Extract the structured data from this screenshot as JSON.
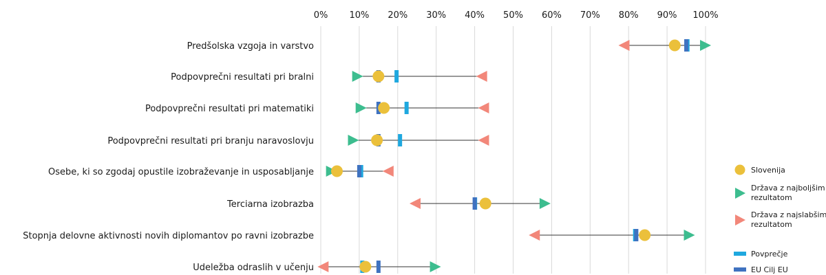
{
  "chart_data": {
    "type": "scatter",
    "xlim": [
      0,
      100
    ],
    "x_ticks": [
      "0%",
      "10%",
      "20%",
      "30%",
      "40%",
      "50%",
      "60%",
      "70%",
      "80%",
      "90%",
      "100%"
    ],
    "grid": "vertical",
    "legend_position": "right",
    "categories": [
      "Predšolska vzgoja in varstvo",
      "Podpovprečni resultati pri bralni",
      "Podpovprečni resultati pri matematiki",
      "Podpovprečni resultati pri branju naravoslovju",
      "Osebe, ki so zgodaj opustile izobraževanje in usposabljanje",
      "Terciarna izobrazba",
      "Stopnja delovne aktivnosti novih diplomantov po ravni izobrazbe",
      "Udeležba odraslih v učenju"
    ],
    "series": [
      {
        "name": "Slovenija",
        "marker": "circle",
        "color": "#EBC03B",
        "values": [
          92.0,
          15.0,
          16.4,
          14.6,
          4.2,
          42.8,
          84.2,
          11.6
        ]
      },
      {
        "name": "Država z najboljšim rezultatom",
        "marker": "triangle-right",
        "color": "#3DBD8F",
        "values": [
          100.0,
          9.6,
          10.5,
          8.5,
          2.8,
          58.3,
          95.8,
          29.8
        ]
      },
      {
        "name": "Država z najslabšim rezultatom",
        "marker": "triangle-left",
        "color": "#F2877A",
        "values": [
          78.8,
          41.8,
          42.3,
          42.3,
          17.5,
          24.5,
          55.5,
          0.6
        ]
      },
      {
        "name": "Povprečje",
        "marker": "dash",
        "color": "#1FA8DF",
        "values": [
          95.3,
          19.7,
          22.3,
          20.6,
          10.5,
          40.1,
          81.7,
          10.8
        ]
      },
      {
        "name": "EU Cilj EU",
        "marker": "dash",
        "color": "#3F72C0",
        "values": [
          95.0,
          15.0,
          15.0,
          15.0,
          10.0,
          40.0,
          82.0,
          15.0
        ]
      }
    ],
    "range_line_color": "#333333",
    "grid_color": "#D9D9D9",
    "legend_entries": [
      "Slovenija",
      "Država z najboljšim\nrezultatom",
      "Država z najslabšim\nrezultatom",
      "Povprečje",
      "EU Cilj EU"
    ]
  }
}
